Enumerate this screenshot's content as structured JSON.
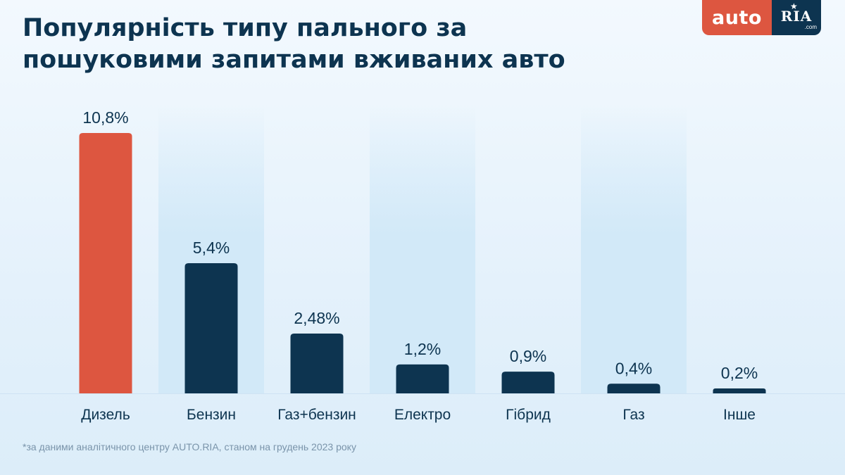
{
  "title": "Популярність типу пального за пошуковими запитами вживаних авто",
  "logo": {
    "auto": "auto",
    "ria": "RIA",
    "com": ".com",
    "star_icon": "star-icon"
  },
  "footnote": "*за даними аналітичного центру AUTO.RIA, станом на грудень 2023 року",
  "colors": {
    "title": "#0d3450",
    "highlight_bar": "#dd5640",
    "bar": "#0d3450",
    "value_label": "#0d3450",
    "category_label": "#0d3450",
    "band": "#d2e9f8"
  },
  "chart_data": {
    "type": "bar",
    "title": "Популярність типу пального за пошуковими запитами вживаних авто",
    "xlabel": "",
    "ylabel": "",
    "categories": [
      "Дизель",
      "Бензин",
      "Газ+бензин",
      "Електро",
      "Гібрид",
      "Газ",
      "Інше"
    ],
    "values": [
      10.8,
      5.4,
      2.48,
      1.2,
      0.9,
      0.4,
      0.2
    ],
    "value_labels": [
      "10,8%",
      "5,4%",
      "2,48%",
      "1,2%",
      "0,9%",
      "0,4%",
      "0,2%"
    ],
    "unit": "%",
    "highlight_index": 0,
    "ylim": [
      0,
      10.8
    ],
    "grid": false,
    "legend": "none",
    "alternating_bands": true
  }
}
